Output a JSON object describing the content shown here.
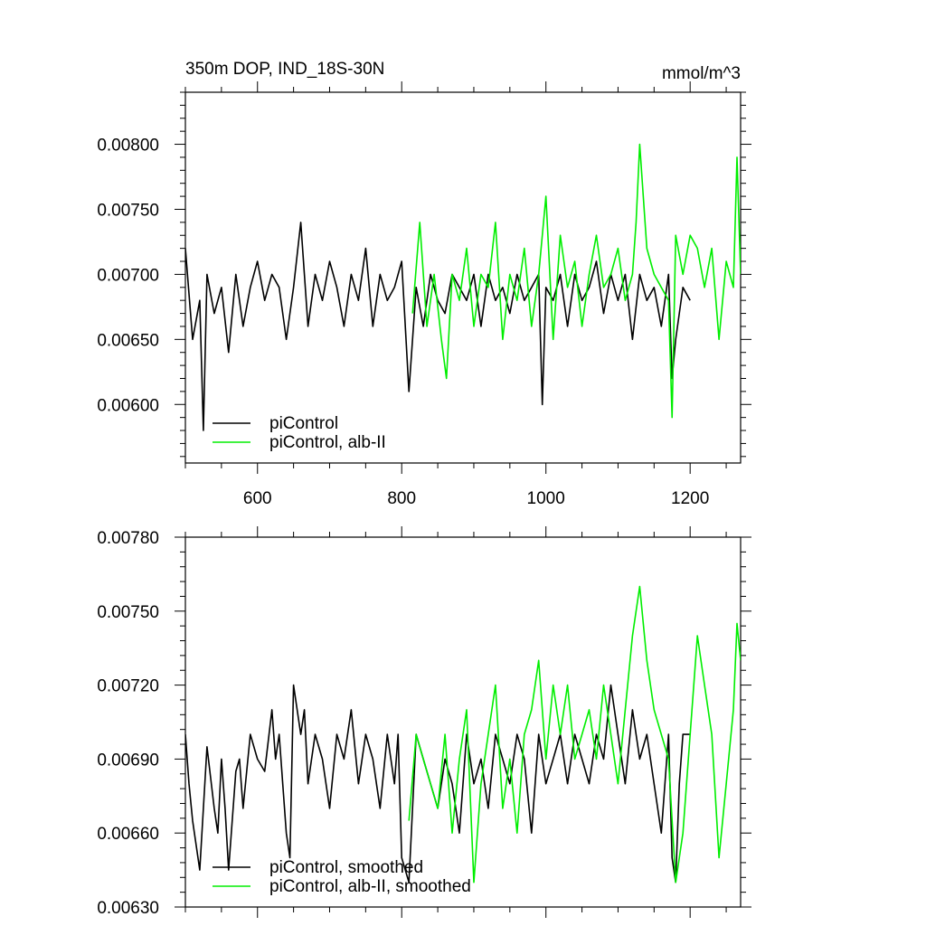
{
  "figure": {
    "title_left": "350m DOP, IND_18S-30N",
    "units": "mmol/m^3"
  },
  "colors": {
    "series_black": "#000000",
    "series_green": "#00ee00",
    "axis": "#000000"
  },
  "chart_data": [
    {
      "type": "line",
      "title": "350m DOP, IND_18S-30N",
      "units_label": "mmol/m^3",
      "xlim": [
        500,
        1270
      ],
      "ylim": [
        0.00555,
        0.0084
      ],
      "xticks": [
        600,
        800,
        1000,
        1200
      ],
      "xtick_labels": [
        "600",
        "800",
        "1000",
        "1200"
      ],
      "yticks": [
        0.006,
        0.0065,
        0.007,
        0.0075,
        0.008
      ],
      "ytick_labels": [
        "0.00600",
        "0.00650",
        "0.00700",
        "0.00750",
        "0.00800"
      ],
      "grid": false,
      "legend_position": "bottom-left",
      "series": [
        {
          "name": "piControl",
          "color": "#000000",
          "x": [
            500,
            510,
            520,
            525,
            530,
            540,
            550,
            560,
            570,
            580,
            590,
            600,
            610,
            620,
            630,
            640,
            650,
            660,
            670,
            680,
            690,
            700,
            710,
            720,
            730,
            740,
            750,
            760,
            770,
            780,
            790,
            800,
            810,
            820,
            830,
            840,
            850,
            860,
            870,
            880,
            890,
            900,
            910,
            920,
            930,
            940,
            950,
            960,
            970,
            980,
            990,
            995,
            1000,
            1010,
            1020,
            1030,
            1040,
            1050,
            1060,
            1070,
            1080,
            1090,
            1100,
            1110,
            1120,
            1130,
            1140,
            1150,
            1160,
            1170,
            1175,
            1180,
            1190,
            1200
          ],
          "y": [
            0.0072,
            0.0065,
            0.0068,
            0.0058,
            0.007,
            0.0067,
            0.0069,
            0.0064,
            0.007,
            0.0066,
            0.0069,
            0.0071,
            0.0068,
            0.007,
            0.0069,
            0.0065,
            0.0069,
            0.0074,
            0.0066,
            0.007,
            0.0068,
            0.0071,
            0.0069,
            0.0066,
            0.007,
            0.0068,
            0.0072,
            0.0066,
            0.007,
            0.0068,
            0.0069,
            0.0071,
            0.0061,
            0.0069,
            0.0066,
            0.007,
            0.0068,
            0.0067,
            0.007,
            0.0069,
            0.0068,
            0.007,
            0.0066,
            0.007,
            0.0068,
            0.0069,
            0.0067,
            0.007,
            0.0068,
            0.0069,
            0.007,
            0.006,
            0.0069,
            0.0068,
            0.007,
            0.0066,
            0.007,
            0.0068,
            0.0069,
            0.0071,
            0.0067,
            0.007,
            0.0068,
            0.007,
            0.0065,
            0.007,
            0.0068,
            0.0069,
            0.0066,
            0.007,
            0.0062,
            0.0065,
            0.0069,
            0.0068
          ]
        },
        {
          "name": "piControl, alb-II",
          "color": "#00ee00",
          "x": [
            815,
            825,
            835,
            845,
            855,
            862,
            870,
            880,
            890,
            900,
            910,
            920,
            930,
            940,
            950,
            960,
            970,
            980,
            990,
            1000,
            1010,
            1020,
            1030,
            1040,
            1050,
            1060,
            1070,
            1080,
            1090,
            1100,
            1110,
            1120,
            1125,
            1130,
            1140,
            1150,
            1160,
            1170,
            1175,
            1180,
            1190,
            1200,
            1210,
            1220,
            1230,
            1240,
            1250,
            1260,
            1265,
            1270
          ],
          "y": [
            0.0067,
            0.0074,
            0.0066,
            0.007,
            0.0065,
            0.0062,
            0.007,
            0.0068,
            0.0072,
            0.0066,
            0.007,
            0.0069,
            0.0074,
            0.0065,
            0.007,
            0.0068,
            0.0072,
            0.0066,
            0.007,
            0.0076,
            0.0065,
            0.0073,
            0.0069,
            0.0071,
            0.0066,
            0.007,
            0.0073,
            0.0069,
            0.007,
            0.0072,
            0.0068,
            0.007,
            0.0074,
            0.008,
            0.0072,
            0.007,
            0.0069,
            0.0068,
            0.0059,
            0.0073,
            0.007,
            0.0073,
            0.0072,
            0.0069,
            0.0072,
            0.0065,
            0.0071,
            0.0069,
            0.0079,
            0.007
          ]
        }
      ]
    },
    {
      "type": "line",
      "title": "",
      "xlim": [
        500,
        1270
      ],
      "ylim": [
        0.0063,
        0.0078
      ],
      "xticks": [
        600,
        800,
        1000,
        1200
      ],
      "xtick_labels": [],
      "yticks": [
        0.0063,
        0.0066,
        0.0069,
        0.0072,
        0.0075,
        0.0078
      ],
      "ytick_labels": [
        "0.00630",
        "0.00660",
        "0.00690",
        "0.00720",
        "0.00750",
        "0.00780"
      ],
      "grid": false,
      "legend_position": "bottom-left",
      "series": [
        {
          "name": "piControl, smoothed",
          "color": "#000000",
          "x": [
            500,
            505,
            510,
            520,
            525,
            530,
            540,
            545,
            550,
            555,
            560,
            570,
            575,
            580,
            590,
            600,
            610,
            620,
            625,
            630,
            640,
            645,
            650,
            660,
            665,
            670,
            680,
            690,
            700,
            710,
            720,
            730,
            740,
            750,
            760,
            770,
            780,
            790,
            795,
            800,
            810,
            820,
            830,
            840,
            850,
            860,
            870,
            880,
            890,
            900,
            910,
            920,
            930,
            940,
            950,
            960,
            970,
            980,
            990,
            1000,
            1010,
            1020,
            1030,
            1040,
            1050,
            1060,
            1070,
            1080,
            1090,
            1100,
            1110,
            1120,
            1130,
            1140,
            1150,
            1160,
            1170,
            1175,
            1180,
            1185,
            1190,
            1200
          ],
          "y": [
            0.007,
            0.0068,
            0.00665,
            0.00645,
            0.0067,
            0.00695,
            0.0067,
            0.0066,
            0.0069,
            0.0067,
            0.00645,
            0.00685,
            0.0069,
            0.0067,
            0.007,
            0.0069,
            0.00685,
            0.0071,
            0.0069,
            0.007,
            0.0066,
            0.0065,
            0.0072,
            0.007,
            0.0071,
            0.0068,
            0.007,
            0.0069,
            0.0067,
            0.007,
            0.0069,
            0.0071,
            0.0068,
            0.007,
            0.0069,
            0.0067,
            0.007,
            0.0068,
            0.007,
            0.0065,
            0.0064,
            0.007,
            0.0069,
            0.0068,
            0.0067,
            0.0069,
            0.0068,
            0.0066,
            0.007,
            0.0068,
            0.0069,
            0.0067,
            0.007,
            0.0069,
            0.0068,
            0.007,
            0.0069,
            0.0066,
            0.007,
            0.0068,
            0.0069,
            0.007,
            0.0068,
            0.007,
            0.0069,
            0.0068,
            0.007,
            0.0069,
            0.0072,
            0.007,
            0.0068,
            0.0071,
            0.0069,
            0.007,
            0.0068,
            0.0066,
            0.007,
            0.0065,
            0.0064,
            0.0068,
            0.007,
            0.007
          ]
        },
        {
          "name": "piControl, alb-II, smoothed",
          "color": "#00ee00",
          "x": [
            810,
            820,
            830,
            840,
            850,
            860,
            870,
            880,
            890,
            900,
            910,
            920,
            930,
            940,
            950,
            960,
            970,
            980,
            990,
            1000,
            1010,
            1020,
            1030,
            1040,
            1050,
            1060,
            1070,
            1080,
            1090,
            1100,
            1110,
            1120,
            1130,
            1140,
            1150,
            1160,
            1170,
            1180,
            1190,
            1200,
            1210,
            1220,
            1230,
            1240,
            1250,
            1260,
            1265,
            1270
          ],
          "y": [
            0.00665,
            0.007,
            0.0069,
            0.0068,
            0.0067,
            0.007,
            0.0066,
            0.0069,
            0.0071,
            0.0064,
            0.0068,
            0.007,
            0.0072,
            0.0067,
            0.0069,
            0.0066,
            0.007,
            0.0071,
            0.0073,
            0.0069,
            0.0072,
            0.007,
            0.0072,
            0.0069,
            0.007,
            0.0071,
            0.0069,
            0.0072,
            0.007,
            0.0068,
            0.0071,
            0.0074,
            0.0076,
            0.0073,
            0.0071,
            0.007,
            0.0069,
            0.0064,
            0.0066,
            0.007,
            0.0074,
            0.0072,
            0.007,
            0.0065,
            0.0068,
            0.0071,
            0.00745,
            0.0073
          ]
        }
      ]
    }
  ]
}
